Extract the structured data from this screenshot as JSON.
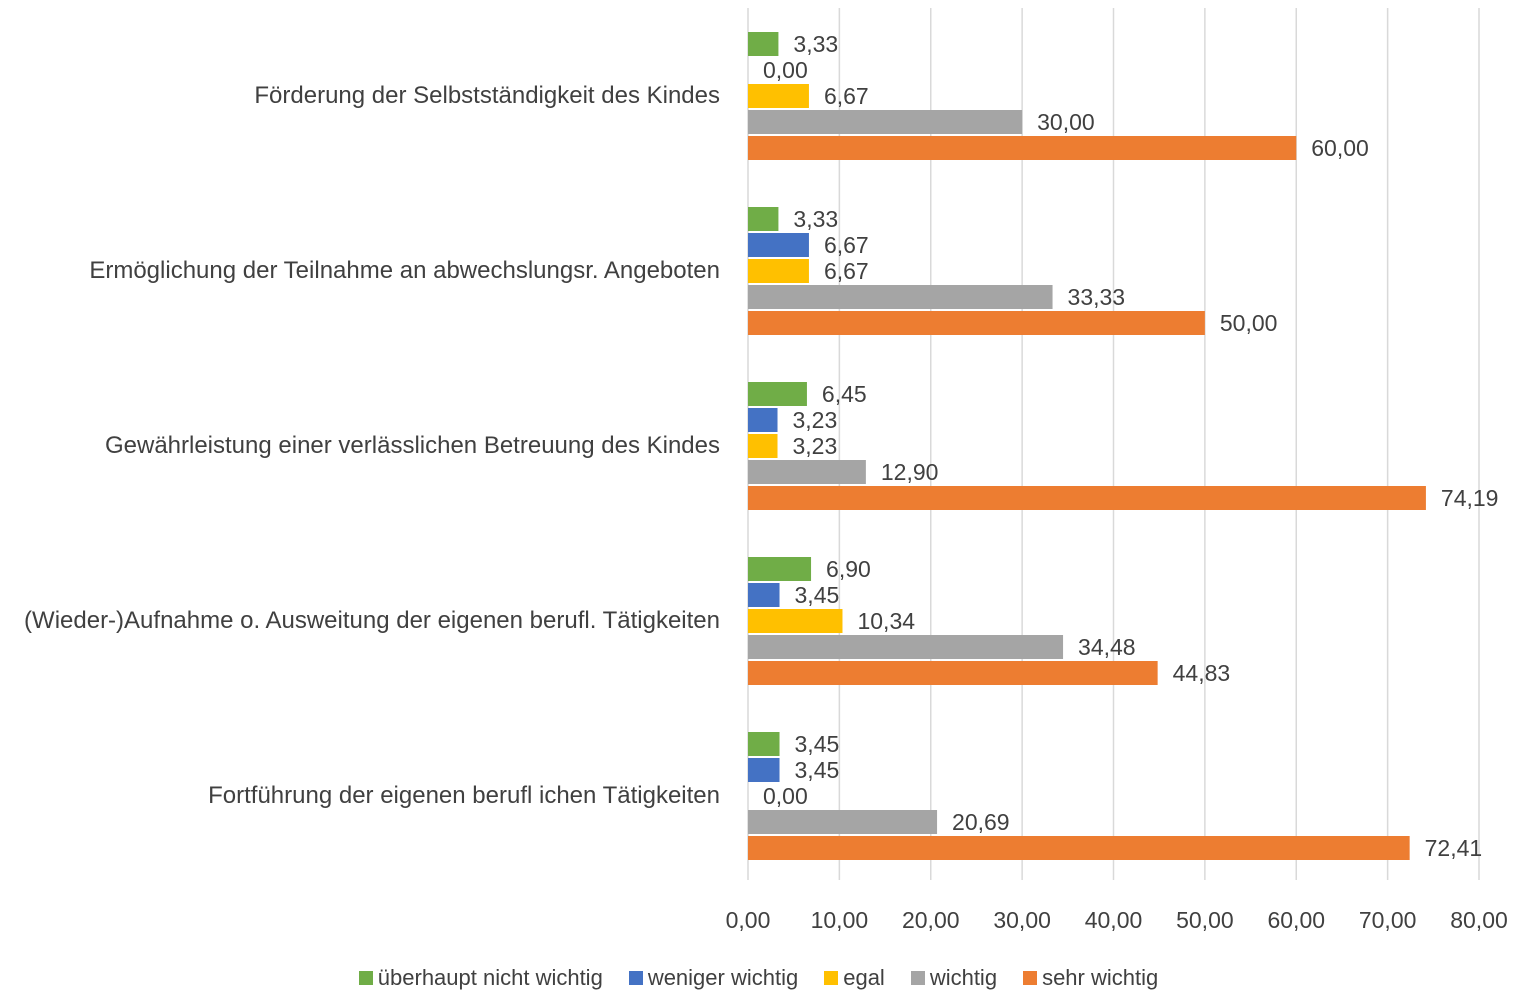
{
  "chart_data": {
    "type": "bar",
    "orientation": "horizontal",
    "categories": [
      "Förderung der Selbstständigkeit des Kindes",
      "Ermöglichung der Teilnahme an abwechslungsr. Angeboten",
      "Gewährleistung einer verlässlichen Betreuung des Kindes",
      "(Wieder-)Aufnahme o. Ausweitung der eigenen berufl. Tätigkeiten",
      "Fortführung der eigenen berufl ichen Tätigkeiten"
    ],
    "series": [
      {
        "name": "überhaupt nicht wichtig",
        "color": "#70ad47",
        "values": [
          3.33,
          3.33,
          6.45,
          6.9,
          3.45
        ],
        "value_labels": [
          "3,33",
          "3,33",
          "6,45",
          "6,90",
          "3,45"
        ]
      },
      {
        "name": "weniger wichtig",
        "color": "#4472c4",
        "values": [
          0.0,
          6.67,
          3.23,
          3.45,
          3.45
        ],
        "value_labels": [
          "0,00",
          "6,67",
          "3,23",
          "3,45",
          "3,45"
        ]
      },
      {
        "name": "egal",
        "color": "#ffc000",
        "values": [
          6.67,
          6.67,
          3.23,
          10.34,
          0.0
        ],
        "value_labels": [
          "6,67",
          "6,67",
          "3,23",
          "10,34",
          "0,00"
        ]
      },
      {
        "name": "wichtig",
        "color": "#a5a5a5",
        "values": [
          30.0,
          33.33,
          12.9,
          34.48,
          20.69
        ],
        "value_labels": [
          "30,00",
          "33,33",
          "12,90",
          "34,48",
          "20,69"
        ]
      },
      {
        "name": "sehr wichtig",
        "color": "#ed7d31",
        "values": [
          60.0,
          50.0,
          74.19,
          44.83,
          72.41
        ],
        "value_labels": [
          "60,00",
          "50,00",
          "74,19",
          "44,83",
          "72,41"
        ]
      }
    ],
    "xlim": [
      0,
      80
    ],
    "xticks": [
      {
        "value": 0,
        "label": "0,00"
      },
      {
        "value": 10,
        "label": "10,00"
      },
      {
        "value": 20,
        "label": "20,00"
      },
      {
        "value": 30,
        "label": "30,00"
      },
      {
        "value": 40,
        "label": "40,00"
      },
      {
        "value": 50,
        "label": "50,00"
      },
      {
        "value": 60,
        "label": "60,00"
      },
      {
        "value": 70,
        "label": "70,00"
      },
      {
        "value": 80,
        "label": "80,00"
      }
    ],
    "grid": true,
    "legend": "bottom"
  }
}
